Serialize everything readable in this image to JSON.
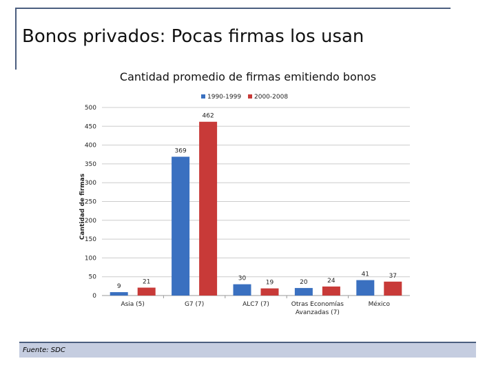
{
  "slide": {
    "title": "Bonos privados: Pocas firmas los usan",
    "footer": "Fuente: SDC"
  },
  "chart_data": {
    "type": "bar",
    "title": "Cantidad promedio de firmas emitiendo bonos",
    "xlabel": "",
    "ylabel": "Cantidad de firmas",
    "ylim": [
      0,
      500
    ],
    "yticks": [
      0,
      50,
      100,
      150,
      200,
      250,
      300,
      350,
      400,
      450,
      500
    ],
    "categories": [
      "Asia (5)",
      "G7 (7)",
      "ALC7 (7)",
      "Otras Economías Avanzadas (7)",
      "México"
    ],
    "series": [
      {
        "name": "1990-1999",
        "color": "#3a70c0",
        "values": [
          9,
          369,
          30,
          20,
          41
        ]
      },
      {
        "name": "2000-2008",
        "color": "#c83a38",
        "values": [
          21,
          462,
          19,
          24,
          37
        ]
      }
    ],
    "legend": "top"
  }
}
